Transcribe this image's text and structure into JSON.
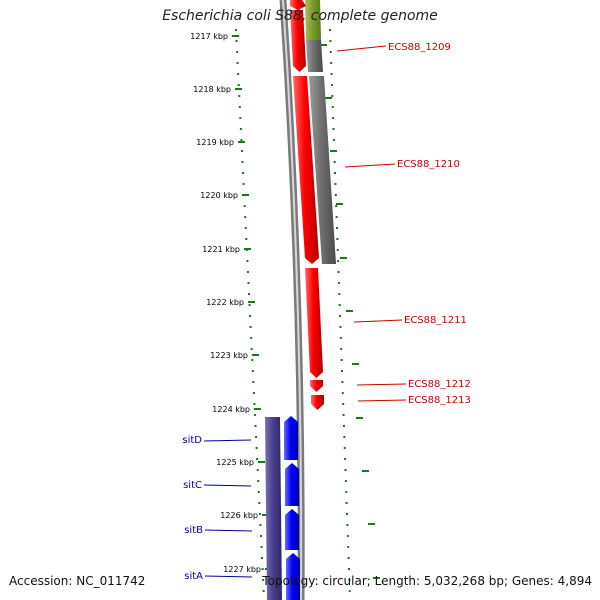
{
  "title": "Escherichia coli S88, complete genome",
  "footer": {
    "accession": "Accession: NC_011742",
    "stats": "Topology: circular; Length: 5,032,268 bp; Genes: 4,894"
  },
  "colors": {
    "forward_gene": "#ff0000",
    "reverse_gene": "#0000ff",
    "operon_band": "#4b3f8f",
    "other_band": "#777777",
    "olive_band": "#7a9a2a",
    "backbone": "#888888",
    "tick": "#1a7a1a",
    "right_label": "#cc0000",
    "left_label": "#000099",
    "ruler_text": "#000000"
  },
  "ruler": {
    "unit": "kbp",
    "labels": [
      "1217 kbp",
      "1218 kbp",
      "1219 kbp",
      "1220 kbp",
      "1221 kbp",
      "1222 kbp",
      "1223 kbp",
      "1224 kbp",
      "1225 kbp",
      "1226 kbp",
      "1227 kbp"
    ]
  },
  "genes_right": [
    "ECS88_1209",
    "ECS88_1210",
    "ECS88_1211",
    "ECS88_1212",
    "ECS88_1213"
  ],
  "genes_left": [
    "sitD",
    "sitC",
    "sitB",
    "sitA"
  ]
}
